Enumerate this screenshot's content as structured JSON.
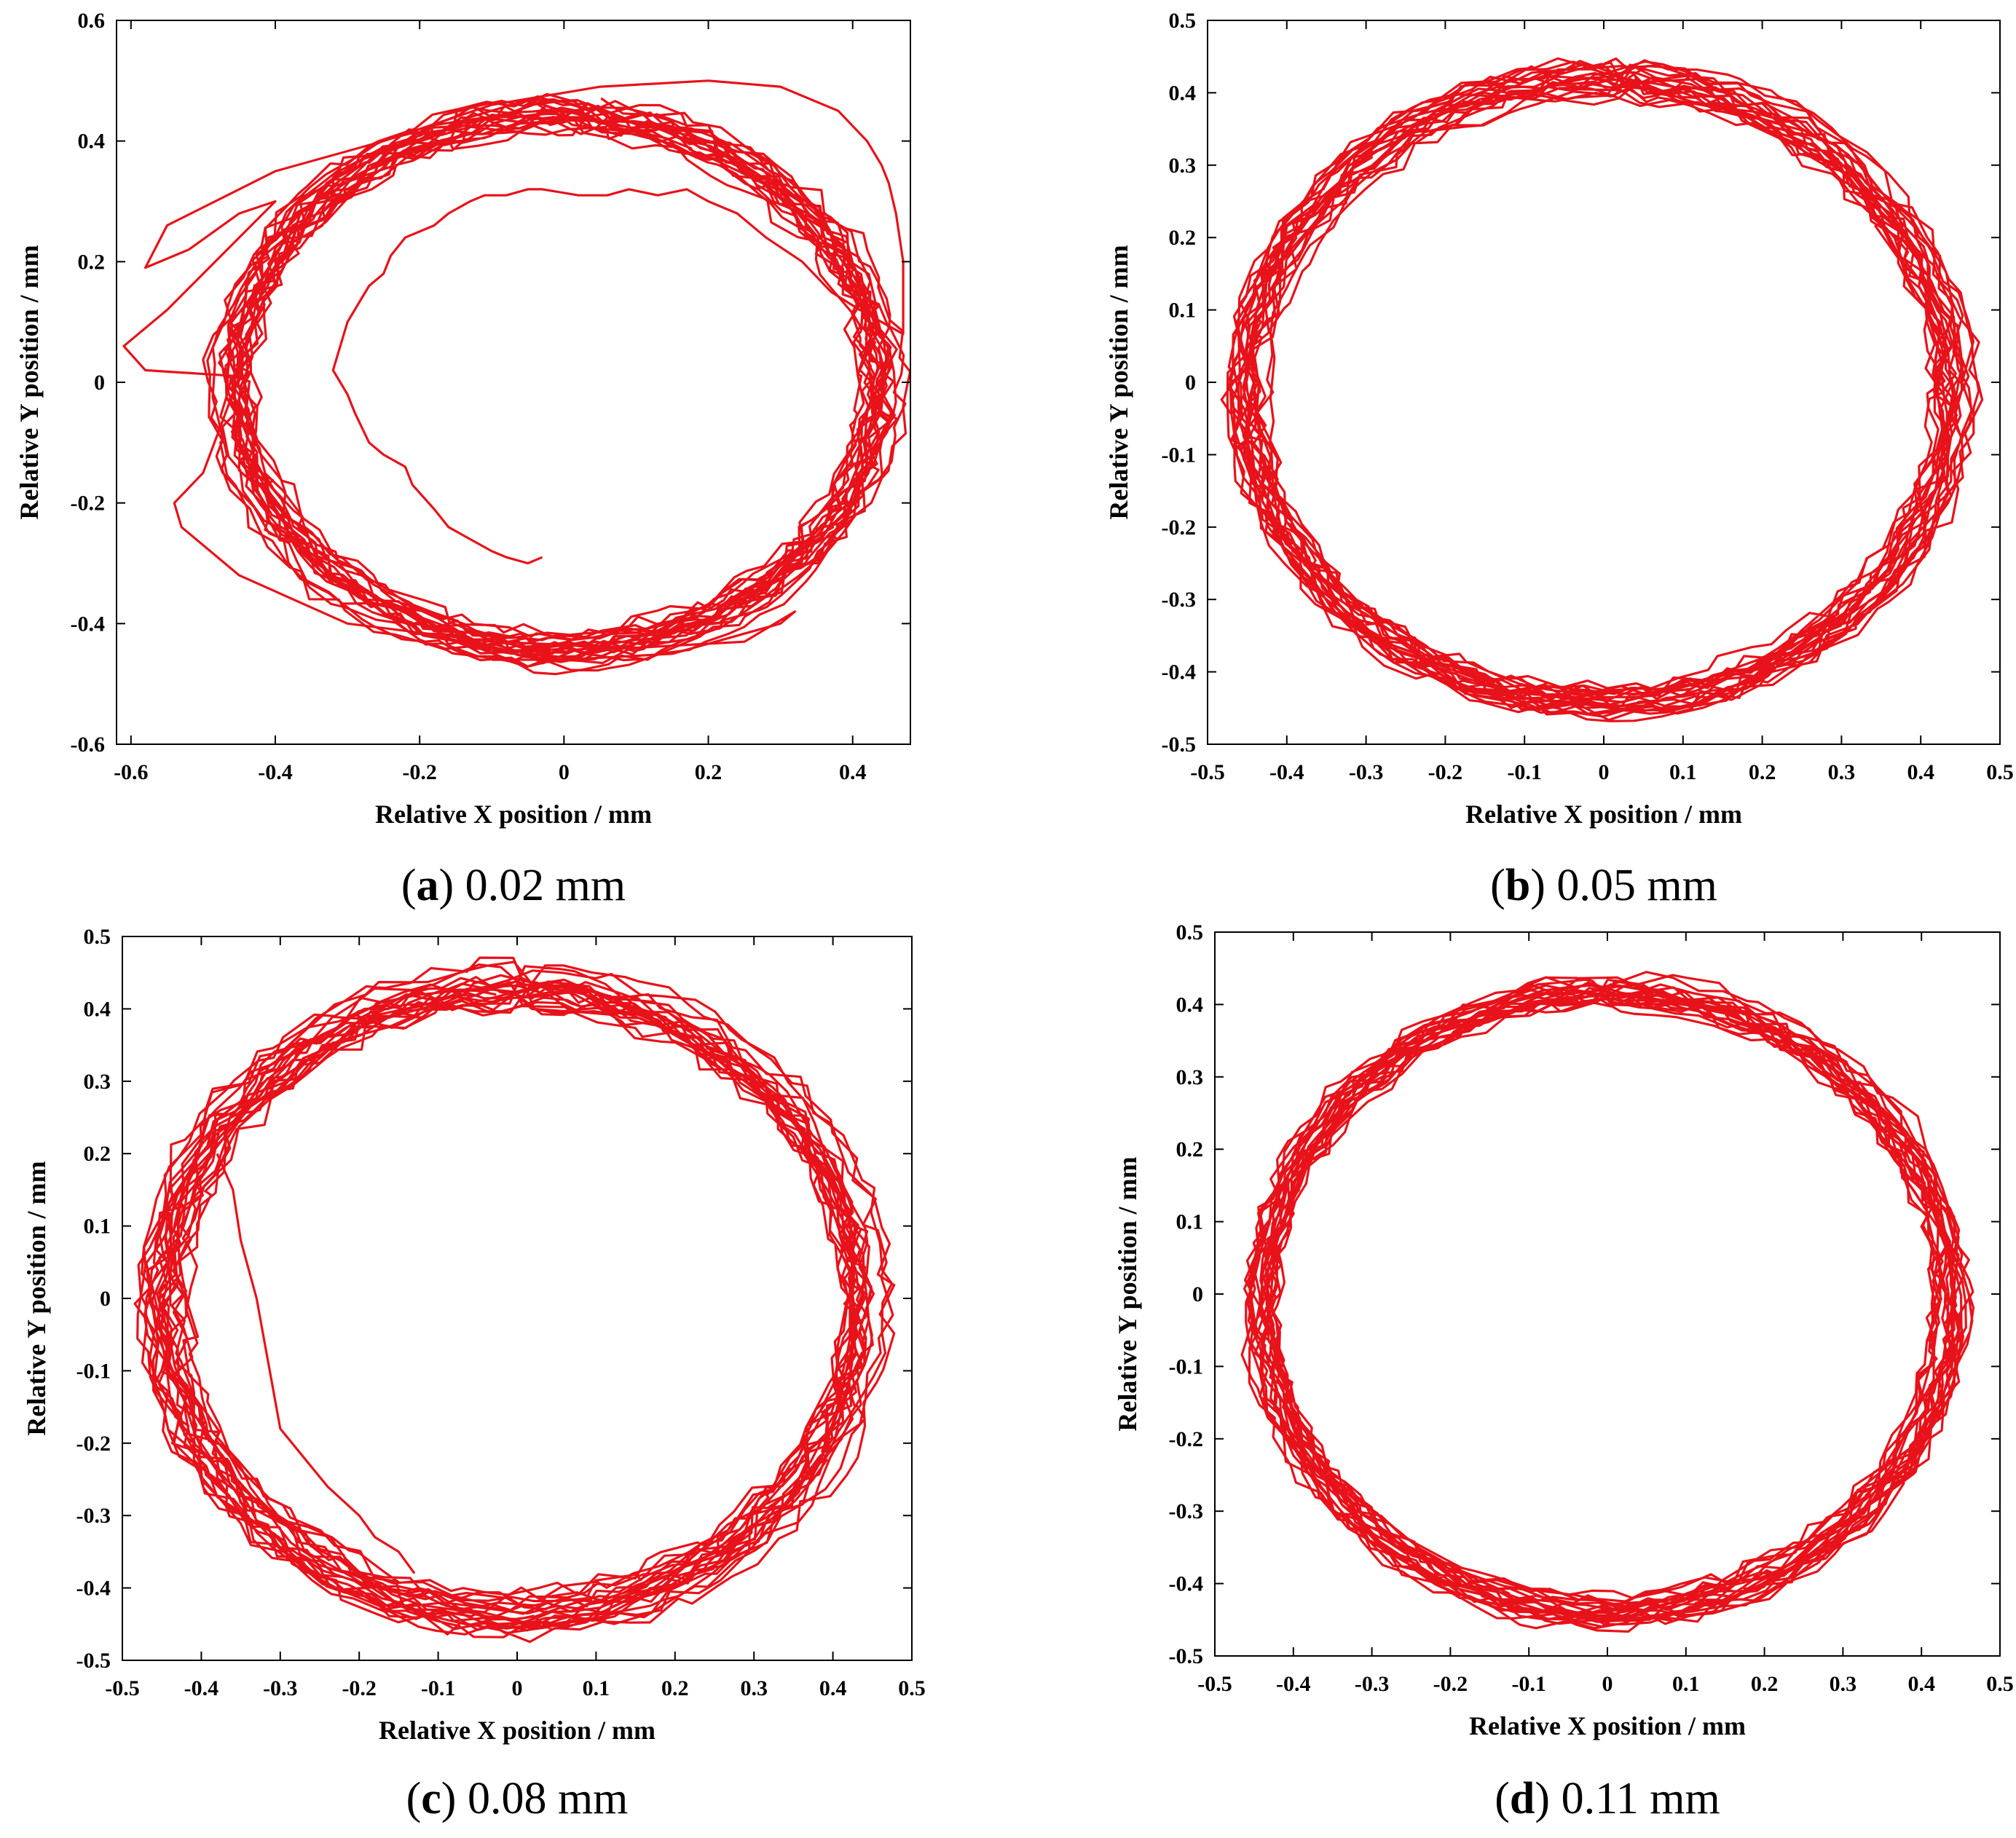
{
  "chart_data": [
    {
      "type": "line",
      "panel": "a",
      "caption_letter": "a",
      "caption_value": "0.02 mm",
      "xlabel": "Relative X position / mm",
      "ylabel": "Relative Y position / mm",
      "xlim": [
        -0.62,
        0.48
      ],
      "ylim": [
        -0.6,
        0.6
      ],
      "xticks": [
        -0.6,
        -0.4,
        -0.2,
        0,
        0.2,
        0.4
      ],
      "yticks": [
        -0.6,
        -0.4,
        -0.2,
        0,
        0.2,
        0.4,
        0.6
      ],
      "xtick_labels": [
        "-0.6",
        "-0.4",
        "-0.2",
        "0",
        "0.2",
        "0.4"
      ],
      "ytick_labels": [
        "-0.6",
        "-0.4",
        "-0.2",
        "0",
        "0.2",
        "0.4",
        "0.6"
      ],
      "color": "#e8121a",
      "series": [
        {
          "name": "trajectory",
          "center": [
            -0.01,
            0.0
          ],
          "radius_x": 0.45,
          "radius_y": 0.445,
          "loops": 22,
          "noise": 0.014,
          "spread": 0.022,
          "seed": 11
        },
        {
          "name": "startup-excursion",
          "x": [
            -0.03,
            -0.05,
            -0.08,
            -0.1,
            -0.13,
            -0.16,
            -0.18,
            -0.21,
            -0.22,
            -0.25,
            -0.27,
            -0.29,
            -0.3,
            -0.31,
            -0.32,
            -0.31,
            -0.3,
            -0.28,
            -0.27,
            -0.25,
            -0.24,
            -0.22,
            -0.2,
            -0.18,
            -0.16,
            -0.13,
            -0.11,
            -0.08,
            -0.05,
            -0.03,
            0.02,
            0.06,
            0.09,
            0.13,
            0.17,
            0.2,
            0.24,
            0.28,
            0.33,
            0.37,
            0.41,
            0.44,
            0.47,
            0.47,
            0.46,
            0.45,
            0.44,
            0.42,
            0.38,
            0.3,
            0.2,
            0.05,
            -0.1,
            -0.25,
            -0.4,
            -0.55,
            -0.58,
            -0.52,
            -0.45,
            -0.4,
            -0.55,
            -0.61,
            -0.58,
            -0.45,
            -0.5,
            -0.54,
            -0.53,
            -0.45,
            -0.3,
            -0.1,
            0.1,
            0.25,
            0.32,
            0.3,
            0.15,
            0.0,
            -0.1
          ],
          "y": [
            -0.29,
            -0.3,
            -0.29,
            -0.28,
            -0.26,
            -0.24,
            -0.21,
            -0.17,
            -0.14,
            -0.12,
            -0.1,
            -0.05,
            -0.02,
            0.0,
            0.02,
            0.06,
            0.1,
            0.14,
            0.16,
            0.18,
            0.21,
            0.24,
            0.25,
            0.26,
            0.28,
            0.3,
            0.31,
            0.31,
            0.32,
            0.32,
            0.31,
            0.31,
            0.32,
            0.31,
            0.32,
            0.3,
            0.28,
            0.24,
            0.2,
            0.15,
            0.12,
            0.1,
            0.08,
            0.2,
            0.28,
            0.33,
            0.36,
            0.4,
            0.45,
            0.49,
            0.5,
            0.49,
            0.46,
            0.4,
            0.35,
            0.26,
            0.19,
            0.22,
            0.28,
            0.3,
            0.12,
            0.06,
            0.02,
            0.01,
            -0.15,
            -0.2,
            -0.24,
            -0.32,
            -0.4,
            -0.43,
            -0.44,
            -0.43,
            -0.38,
            -0.4,
            -0.45,
            -0.46,
            -0.46
          ]
        }
      ]
    },
    {
      "type": "line",
      "panel": "b",
      "caption_letter": "b",
      "caption_value": "0.05 mm",
      "xlabel": "Relative X position / mm",
      "ylabel": "Relative Y position / mm",
      "xlim": [
        -0.5,
        0.5
      ],
      "ylim": [
        -0.5,
        0.5
      ],
      "xticks": [
        -0.5,
        -0.4,
        -0.3,
        -0.2,
        -0.1,
        0,
        0.1,
        0.2,
        0.3,
        0.4,
        0.5
      ],
      "yticks": [
        -0.5,
        -0.4,
        -0.3,
        -0.2,
        -0.1,
        0,
        0.1,
        0.2,
        0.3,
        0.4,
        0.5
      ],
      "xtick_labels": [
        "-0.5",
        "-0.4",
        "-0.3",
        "-0.2",
        "-0.1",
        "0",
        "0.1",
        "0.2",
        "0.3",
        "0.4",
        "0.5"
      ],
      "ytick_labels": [
        "-0.5",
        "-0.4",
        "-0.3",
        "-0.2",
        "-0.1",
        "0",
        "0.1",
        "0.2",
        "0.3",
        "0.4",
        "0.5"
      ],
      "color": "#e8121a",
      "series": [
        {
          "name": "trajectory",
          "center": [
            -0.005,
            -0.01
          ],
          "radius_x": 0.445,
          "radius_y": 0.43,
          "loops": 22,
          "noise": 0.012,
          "spread": 0.02,
          "seed": 23
        }
      ]
    },
    {
      "type": "line",
      "panel": "c",
      "caption_letter": "c",
      "caption_value": "0.08 mm",
      "xlabel": "Relative X position / mm",
      "ylabel": "Relative Y position / mm",
      "xlim": [
        -0.5,
        0.5
      ],
      "ylim": [
        -0.5,
        0.5
      ],
      "xticks": [
        -0.5,
        -0.4,
        -0.3,
        -0.2,
        -0.1,
        0,
        0.1,
        0.2,
        0.3,
        0.4,
        0.5
      ],
      "yticks": [
        -0.5,
        -0.4,
        -0.3,
        -0.2,
        -0.1,
        0,
        0.1,
        0.2,
        0.3,
        0.4,
        0.5
      ],
      "xtick_labels": [
        "-0.5",
        "-0.4",
        "-0.3",
        "-0.2",
        "-0.1",
        "0",
        "0.1",
        "0.2",
        "0.3",
        "0.4",
        "0.5"
      ],
      "ytick_labels": [
        "-0.5",
        "-0.4",
        "-0.3",
        "-0.2",
        "-0.1",
        "0",
        "0.1",
        "0.2",
        "0.3",
        "0.4",
        "0.5"
      ],
      "color": "#e8121a",
      "series": [
        {
          "name": "trajectory",
          "center": [
            -0.005,
            -0.005
          ],
          "radius_x": 0.445,
          "radius_y": 0.435,
          "loops": 22,
          "noise": 0.013,
          "spread": 0.024,
          "seed": 37
        },
        {
          "name": "inner-drift",
          "x": [
            -0.13,
            -0.15,
            -0.18,
            -0.2,
            -0.24,
            -0.27,
            -0.3,
            -0.31,
            -0.32,
            -0.33,
            -0.35,
            -0.36,
            -0.38
          ],
          "y": [
            -0.38,
            -0.35,
            -0.33,
            -0.3,
            -0.26,
            -0.22,
            -0.18,
            -0.12,
            -0.06,
            0.0,
            0.08,
            0.15,
            0.2
          ]
        }
      ]
    },
    {
      "type": "line",
      "panel": "d",
      "caption_letter": "d",
      "caption_value": "0.11 mm",
      "xlabel": "Relative X position / mm",
      "ylabel": "Relative Y position / mm",
      "xlim": [
        -0.5,
        0.5
      ],
      "ylim": [
        -0.5,
        0.5
      ],
      "xticks": [
        -0.5,
        -0.4,
        -0.3,
        -0.2,
        -0.1,
        0,
        0.1,
        0.2,
        0.3,
        0.4,
        0.5
      ],
      "yticks": [
        -0.5,
        -0.4,
        -0.3,
        -0.2,
        -0.1,
        0,
        0.1,
        0.2,
        0.3,
        0.4,
        0.5
      ],
      "xtick_labels": [
        "-0.5",
        "-0.4",
        "-0.3",
        "-0.2",
        "-0.1",
        "0",
        "0.1",
        "0.2",
        "0.3",
        "0.4",
        "0.5"
      ],
      "ytick_labels": [
        "-0.5",
        "-0.4",
        "-0.3",
        "-0.2",
        "-0.1",
        "0",
        "0.1",
        "0.2",
        "0.3",
        "0.4",
        "0.5"
      ],
      "color": "#e8121a",
      "series": [
        {
          "name": "trajectory",
          "center": [
            0.0,
            -0.01
          ],
          "radius_x": 0.44,
          "radius_y": 0.43,
          "loops": 22,
          "noise": 0.011,
          "spread": 0.018,
          "seed": 53
        }
      ]
    }
  ]
}
